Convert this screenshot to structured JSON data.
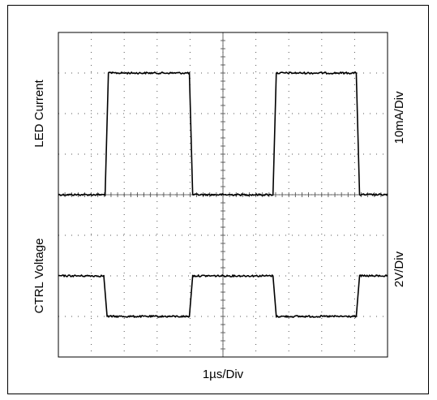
{
  "chart_data": {
    "type": "line",
    "style": "oscilloscope",
    "x_axis": {
      "label": "1µs/Div",
      "divisions": 10
    },
    "y_axis": {
      "divisions": 8,
      "grid": "dotted",
      "minor_ticks": 5
    },
    "series": [
      {
        "name": "LED Current",
        "scale_label": "10mA/Div",
        "unit": "div",
        "low_level": 0,
        "high_level": 3,
        "points": [
          [
            0,
            0
          ],
          [
            1.42,
            0
          ],
          [
            1.52,
            3
          ],
          [
            3.98,
            3
          ],
          [
            4.08,
            0
          ],
          [
            6.52,
            0
          ],
          [
            6.62,
            3
          ],
          [
            9.05,
            3
          ],
          [
            9.15,
            0
          ],
          [
            10,
            0
          ]
        ]
      },
      {
        "name": "CTRL Voltage",
        "scale_label": "2V/Div",
        "unit": "div",
        "high_level": -2,
        "low_level": -3,
        "points": [
          [
            0,
            -2
          ],
          [
            1.38,
            -2
          ],
          [
            1.48,
            -3
          ],
          [
            3.98,
            -3
          ],
          [
            4.08,
            -2
          ],
          [
            6.52,
            -2
          ],
          [
            6.62,
            -3
          ],
          [
            9.05,
            -3
          ],
          [
            9.15,
            -2
          ],
          [
            10,
            -2
          ]
        ]
      }
    ]
  }
}
